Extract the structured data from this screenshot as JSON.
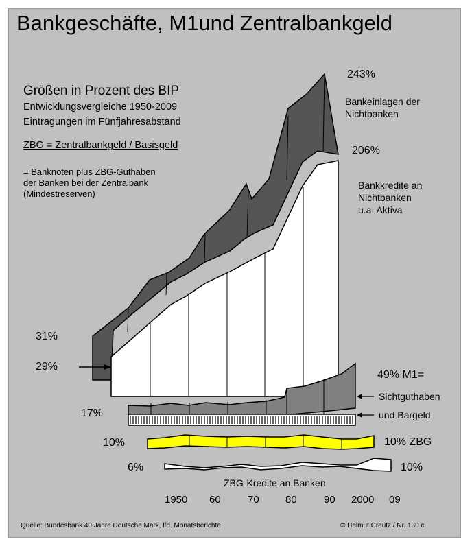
{
  "title": "Bankgeschäfte, M1und Zentralbankgeld",
  "subtitle": {
    "line1": "Größen in Prozent des BIP",
    "line2": "Entwicklungsvergleiche 1950-2009",
    "line3": "Eintragungen im Fünfjahresabstand"
  },
  "definition": {
    "heading": "ZBG = Zentralbankgeld / Basisgeld",
    "line1": "= Banknoten plus ZBG-Guthaben",
    "line2": "der Banken bei der Zentralbank",
    "line3": "(Mindestreserven)"
  },
  "labels": {
    "deposits_start": "31%",
    "credits_start": "29%",
    "deposits_end": "243%",
    "deposits_name_1": "Bankeinlagen der",
    "deposits_name_2": "Nichtbanken",
    "credits_end": "206%",
    "credits_name_1": "Bankkredite an",
    "credits_name_2": "Nichtbanken",
    "credits_name_3": "u.a. Aktiva",
    "m1_start": "17%",
    "m1_end": "49%  M1=",
    "m1_part1": "Sichtguthaben",
    "m1_part2": "und Bargeld",
    "zbg_start": "10%",
    "zbg_end": "10% ZBG",
    "zbgk_start": "6%",
    "zbgk_end": "10%",
    "zbgk_name": "ZBG-Kredite an Banken"
  },
  "years": [
    "1950",
    "60",
    "70",
    "80",
    "90",
    "2000",
    "09"
  ],
  "footer": {
    "source": "Quelle: Bundesbank 40 Jahre Deutsche Mark, lfd. Monatsberichte",
    "credit": "©  Helmut Creutz  /  Nr. 130 c"
  },
  "colors": {
    "background": "#c0c0c0",
    "deposits": "#555555",
    "credits": "#ffffff",
    "m1": "#808080",
    "zbg": "#ffff00",
    "zbgk": "#ffffff"
  }
}
